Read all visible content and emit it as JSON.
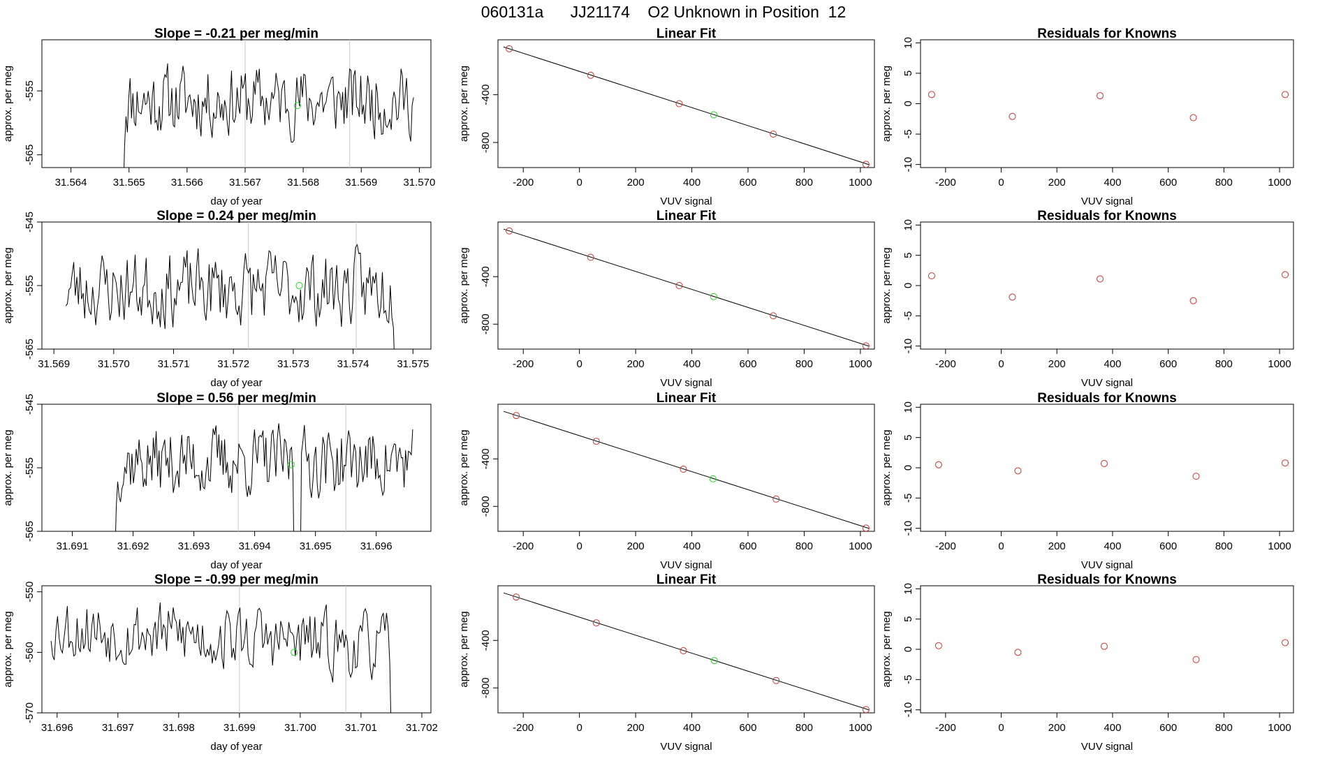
{
  "figure_title": "060131a      JJ21174    O2 Unknown in Position  12",
  "colors": {
    "line": "#000000",
    "known_point": "#cc3333",
    "unknown_point": "#22dd22",
    "vline": "#c8c8c8"
  },
  "chart_data": [
    {
      "type": "line",
      "row": 0,
      "panel": "timeseries",
      "title": "Slope =  -0.21  per meg/min",
      "xlabel": "day of year",
      "ylabel": "approx. per meg",
      "xlim": [
        31.5635,
        31.5702
      ],
      "ylim": [
        -567,
        -547
      ],
      "xticks": [
        "31.564",
        "31.565",
        "31.566",
        "31.567",
        "31.568",
        "31.569",
        "31.570"
      ],
      "yticks": [
        "-565",
        "-555"
      ],
      "vlines": [
        31.567,
        31.5688
      ],
      "start": 31.5649,
      "end": 31.5699,
      "base": -556.5,
      "amp": 2.2,
      "drop_start": true,
      "drop_end": false,
      "seed": 11,
      "unknown_point": {
        "x": 31.5679,
        "y": -557.3
      }
    },
    {
      "type": "scatter",
      "row": 0,
      "panel": "linear-fit",
      "title": "Linear Fit",
      "xlabel": "VUV signal",
      "ylabel": "approx. per meg",
      "xlim": [
        -290,
        1050
      ],
      "ylim": [
        -1010,
        60
      ],
      "xticks": [
        "-200",
        "0",
        "200",
        "400",
        "600",
        "800",
        "1000"
      ],
      "yticks": [
        "-400",
        "-800"
      ],
      "line": [
        [
          -270,
          0
        ],
        [
          1030,
          -985
        ]
      ],
      "known_points": [
        [
          -250,
          -15
        ],
        [
          40,
          -237
        ],
        [
          355,
          -475
        ],
        [
          690,
          -730
        ],
        [
          1020,
          -983
        ]
      ],
      "unknown_point": [
        478,
        -568
      ]
    },
    {
      "type": "scatter",
      "row": 0,
      "panel": "residuals",
      "title": "Residuals for Knowns",
      "xlabel": "VUV signal",
      "ylabel": "approx. per meg",
      "xlim": [
        -290,
        1050
      ],
      "ylim": [
        -10.5,
        10.5
      ],
      "xticks": [
        "-200",
        "0",
        "200",
        "400",
        "600",
        "800",
        "1000"
      ],
      "yticks": [
        "10",
        "5",
        "0",
        "-5",
        "-10"
      ],
      "points": [
        [
          -250,
          1.5
        ],
        [
          40,
          -2.1
        ],
        [
          355,
          1.3
        ],
        [
          690,
          -2.3
        ],
        [
          1020,
          1.5
        ]
      ]
    },
    {
      "type": "line",
      "row": 1,
      "panel": "timeseries",
      "title": "Slope =  0.24  per meg/min",
      "xlabel": "day of year",
      "ylabel": "approx. per meg",
      "xlim": [
        31.5688,
        31.5753
      ],
      "ylim": [
        -565,
        -545
      ],
      "xticks": [
        "31.569",
        "31.570",
        "31.571",
        "31.572",
        "31.573",
        "31.574",
        "31.575"
      ],
      "yticks": [
        "-545",
        "-555",
        "-565"
      ],
      "vlines": [
        31.57225,
        31.57405
      ],
      "start": 31.5692,
      "end": 31.5747,
      "base": -555.5,
      "amp": 2.4,
      "drop_start": false,
      "drop_end": true,
      "seed": 23,
      "unknown_point": {
        "x": 31.5731,
        "y": -555
      }
    },
    {
      "type": "scatter",
      "row": 1,
      "panel": "linear-fit",
      "title": "Linear Fit",
      "xlabel": "VUV signal",
      "ylabel": "approx. per meg",
      "xlim": [
        -290,
        1050
      ],
      "ylim": [
        -1010,
        60
      ],
      "xticks": [
        "-200",
        "0",
        "200",
        "400",
        "600",
        "800",
        "1000"
      ],
      "yticks": [
        "-400",
        "-800"
      ],
      "line": [
        [
          -270,
          0
        ],
        [
          1030,
          -985
        ]
      ],
      "known_points": [
        [
          -250,
          -15
        ],
        [
          40,
          -237
        ],
        [
          355,
          -475
        ],
        [
          690,
          -730
        ],
        [
          1020,
          -983
        ]
      ],
      "unknown_point": [
        478,
        -568
      ]
    },
    {
      "type": "scatter",
      "row": 1,
      "panel": "residuals",
      "title": "Residuals for Knowns",
      "xlabel": "VUV signal",
      "ylabel": "approx. per meg",
      "xlim": [
        -290,
        1050
      ],
      "ylim": [
        -10.5,
        10.5
      ],
      "xticks": [
        "-200",
        "0",
        "200",
        "400",
        "600",
        "800",
        "1000"
      ],
      "yticks": [
        "10",
        "5",
        "0",
        "-5",
        "-10"
      ],
      "points": [
        [
          -250,
          1.6
        ],
        [
          40,
          -1.9
        ],
        [
          355,
          1.1
        ],
        [
          690,
          -2.5
        ],
        [
          1020,
          1.8
        ]
      ]
    },
    {
      "type": "line",
      "row": 2,
      "panel": "timeseries",
      "title": "Slope =  0.56  per meg/min",
      "xlabel": "day of year",
      "ylabel": "approx. per meg",
      "xlim": [
        31.6905,
        31.6969
      ],
      "ylim": [
        -565,
        -545
      ],
      "xticks": [
        "31.691",
        "31.692",
        "31.693",
        "31.694",
        "31.695",
        "31.696"
      ],
      "yticks": [
        "-545",
        "-555",
        "-565"
      ],
      "vlines": [
        31.69373,
        31.6955
      ],
      "start": 31.6917,
      "end": 31.6966,
      "base": -554,
      "amp": 2.2,
      "drop_start": true,
      "drop_end": false,
      "seed": 37,
      "dip_at": 31.6947,
      "unknown_point": {
        "x": 31.6946,
        "y": -554.5
      }
    },
    {
      "type": "scatter",
      "row": 2,
      "panel": "linear-fit",
      "title": "Linear Fit",
      "xlabel": "VUV signal",
      "ylabel": "approx. per meg",
      "xlim": [
        -290,
        1050
      ],
      "ylim": [
        -1010,
        60
      ],
      "xticks": [
        "-200",
        "0",
        "200",
        "400",
        "600",
        "800",
        "1000"
      ],
      "yticks": [
        "-400",
        "-800"
      ],
      "line": [
        [
          -270,
          0
        ],
        [
          1030,
          -985
        ]
      ],
      "known_points": [
        [
          -225,
          -35
        ],
        [
          60,
          -252
        ],
        [
          370,
          -487
        ],
        [
          700,
          -738
        ],
        [
          1020,
          -983
        ]
      ],
      "unknown_point": [
        475,
        -568
      ]
    },
    {
      "type": "scatter",
      "row": 2,
      "panel": "residuals",
      "title": "Residuals for Knowns",
      "xlabel": "VUV signal",
      "ylabel": "approx. per meg",
      "xlim": [
        -290,
        1050
      ],
      "ylim": [
        -10.5,
        10.5
      ],
      "xticks": [
        "-200",
        "0",
        "200",
        "400",
        "600",
        "800",
        "1000"
      ],
      "yticks": [
        "10",
        "5",
        "0",
        "-5",
        "-10"
      ],
      "points": [
        [
          -225,
          0.5
        ],
        [
          60,
          -0.5
        ],
        [
          370,
          0.7
        ],
        [
          700,
          -1.4
        ],
        [
          1020,
          0.8
        ]
      ]
    },
    {
      "type": "line",
      "row": 3,
      "panel": "timeseries",
      "title": "Slope =  -0.99  per meg/min",
      "xlabel": "day of year",
      "ylabel": "approx. per meg",
      "xlim": [
        31.69575,
        31.70215
      ],
      "ylim": [
        -570,
        -549
      ],
      "xticks": [
        "31.696",
        "31.697",
        "31.698",
        "31.699",
        "31.700",
        "31.701",
        "31.702"
      ],
      "yticks": [
        "-550",
        "-560",
        "-570"
      ],
      "vlines": [
        31.699,
        31.70075
      ],
      "start": 31.6959,
      "end": 31.7015,
      "base": -557.5,
      "amp": 2.2,
      "drop_start": false,
      "drop_end": true,
      "trend": -3.5,
      "seed": 53,
      "unknown_point": {
        "x": 31.6999,
        "y": -560
      }
    },
    {
      "type": "scatter",
      "row": 3,
      "panel": "linear-fit",
      "title": "Linear Fit",
      "xlabel": "VUV signal",
      "ylabel": "approx. per meg",
      "xlim": [
        -290,
        1050
      ],
      "ylim": [
        -1010,
        60
      ],
      "xticks": [
        "-200",
        "0",
        "200",
        "400",
        "600",
        "800",
        "1000"
      ],
      "yticks": [
        "-400",
        "-800"
      ],
      "line": [
        [
          -270,
          0
        ],
        [
          1030,
          -985
        ]
      ],
      "known_points": [
        [
          -225,
          -35
        ],
        [
          60,
          -252
        ],
        [
          370,
          -487
        ],
        [
          700,
          -738
        ],
        [
          1020,
          -983
        ]
      ],
      "unknown_point": [
        480,
        -570
      ]
    },
    {
      "type": "scatter",
      "row": 3,
      "panel": "residuals",
      "title": "Residuals for Knowns",
      "xlabel": "VUV signal",
      "ylabel": "approx. per meg",
      "xlim": [
        -290,
        1050
      ],
      "ylim": [
        -10.5,
        10.5
      ],
      "xticks": [
        "-200",
        "0",
        "200",
        "400",
        "600",
        "800",
        "1000"
      ],
      "yticks": [
        "10",
        "5",
        "0",
        "-5",
        "-10"
      ],
      "points": [
        [
          -225,
          0.6
        ],
        [
          60,
          -0.5
        ],
        [
          370,
          0.5
        ],
        [
          700,
          -1.7
        ],
        [
          1020,
          1.1
        ]
      ]
    }
  ]
}
